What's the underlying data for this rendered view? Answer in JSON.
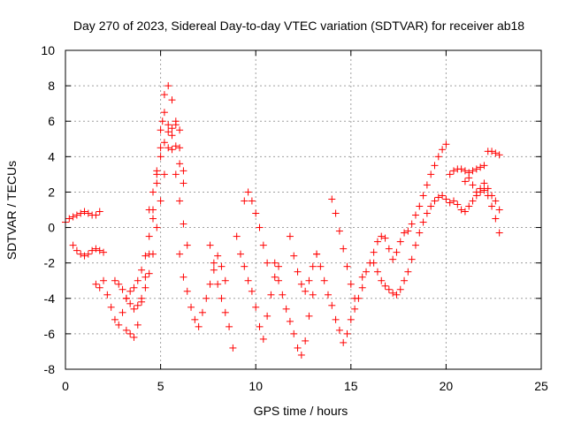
{
  "chart_data": {
    "type": "scatter",
    "title": "Day 270 of 2023, Sidereal Day-to-day VTEC variation (SDTVAR) for receiver ab18",
    "xlabel": "GPS time / hours",
    "ylabel": "SDTVAR / TECUs",
    "xlim": [
      0,
      25
    ],
    "ylim": [
      -8,
      10
    ],
    "x_ticks": [
      "0",
      "5",
      "10",
      "15",
      "20",
      "25"
    ],
    "y_ticks": [
      "-8",
      "-6",
      "-4",
      "-2",
      "0",
      "2",
      "4",
      "6",
      "8",
      "10"
    ],
    "grid": true,
    "marker": "plus",
    "color": "#ff0000",
    "series": [
      {
        "name": "SDTVAR",
        "x": [
          0.0,
          0.2,
          0.4,
          0.6,
          0.8,
          1.0,
          1.2,
          1.4,
          1.6,
          1.8,
          0.4,
          0.6,
          0.8,
          1.0,
          1.2,
          1.4,
          1.6,
          1.8,
          2.0,
          1.6,
          1.8,
          2.0,
          2.2,
          2.4,
          2.6,
          2.8,
          3.0,
          3.2,
          3.4,
          3.6,
          3.8,
          4.0,
          4.2,
          4.4,
          4.6,
          4.8,
          5.0,
          5.2,
          5.4,
          5.6,
          5.8,
          6.0,
          6.2,
          2.6,
          2.8,
          3.0,
          3.2,
          3.4,
          3.6,
          3.8,
          4.0,
          4.2,
          4.4,
          4.6,
          4.8,
          5.0,
          5.2,
          5.4,
          5.6,
          5.8,
          6.0,
          3.2,
          3.4,
          3.6,
          3.8,
          4.0,
          4.2,
          4.4,
          4.6,
          4.8,
          5.0,
          5.1,
          5.2,
          5.4,
          5.6,
          5.8,
          6.0,
          6.2,
          6.4,
          4.4,
          4.6,
          4.8,
          5.0,
          5.2,
          5.4,
          5.6,
          5.8,
          6.0,
          6.2,
          6.0,
          6.2,
          6.4,
          6.6,
          6.8,
          7.0,
          7.2,
          7.4,
          7.6,
          7.8,
          8.0,
          8.2,
          8.4,
          7.6,
          7.8,
          8.0,
          8.2,
          8.4,
          8.6,
          8.8,
          9.0,
          9.2,
          9.4,
          9.6,
          9.8,
          10.0,
          10.2,
          10.4,
          10.6,
          10.8,
          11.0,
          11.2,
          9.4,
          9.6,
          9.8,
          10.0,
          10.2,
          10.4,
          10.6,
          11.0,
          11.2,
          11.4,
          11.6,
          11.8,
          12.0,
          12.2,
          12.4,
          12.6,
          12.8,
          13.0,
          11.8,
          12.0,
          12.2,
          12.4,
          12.6,
          12.8,
          13.0,
          13.2,
          13.2,
          13.4,
          13.6,
          13.8,
          14.0,
          14.2,
          14.4,
          14.6,
          14.8,
          15.0,
          15.2,
          15.4,
          15.6,
          14.0,
          14.2,
          14.4,
          14.6,
          14.8,
          15.0,
          15.2,
          15.6,
          15.8,
          16.0,
          16.2,
          16.4,
          16.6,
          16.8,
          17.0,
          17.2,
          17.4,
          17.6,
          17.8,
          18.0,
          18.2,
          18.4,
          18.6,
          18.8,
          19.0,
          19.2,
          19.4,
          19.6,
          19.8,
          20.0,
          16.2,
          16.4,
          16.6,
          16.8,
          17.0,
          17.2,
          17.4,
          17.6,
          17.8,
          18.0,
          18.2,
          18.4,
          18.6,
          18.8,
          19.0,
          19.2,
          19.4,
          19.6,
          19.8,
          20.0,
          20.2,
          20.2,
          20.4,
          20.6,
          20.8,
          21.0,
          21.2,
          21.4,
          21.6,
          21.8,
          22.0,
          22.2,
          22.4,
          22.6,
          22.8,
          20.4,
          20.6,
          20.8,
          21.0,
          21.2,
          21.4,
          21.6,
          21.8,
          22.0,
          22.2,
          22.4,
          22.6,
          22.8,
          21.0,
          21.2,
          21.4,
          21.6,
          21.8,
          22.0,
          22.2,
          22.4,
          22.6,
          22.8
        ],
        "y": [
          0.3,
          0.5,
          0.6,
          0.7,
          0.8,
          0.9,
          0.8,
          0.7,
          0.7,
          0.9,
          -1.0,
          -1.3,
          -1.5,
          -1.6,
          -1.5,
          -1.3,
          -1.2,
          -1.3,
          -1.4,
          -3.2,
          -3.4,
          -3.0,
          -3.8,
          -4.5,
          -5.2,
          -5.5,
          -4.8,
          -4.0,
          -3.6,
          -3.4,
          -3.0,
          -2.4,
          -1.6,
          -0.5,
          1.0,
          3.0,
          5.5,
          7.5,
          8.0,
          7.2,
          6.0,
          4.5,
          3.2,
          -3.0,
          -3.2,
          -3.5,
          -4.0,
          -4.3,
          -4.6,
          -4.4,
          -4.0,
          -3.4,
          -2.6,
          -1.5,
          0.0,
          1.5,
          3.0,
          4.5,
          5.6,
          5.8,
          5.5,
          -5.8,
          -6.0,
          -6.2,
          -5.5,
          -4.2,
          -2.8,
          -1.5,
          0.5,
          2.5,
          4.5,
          6.0,
          6.5,
          5.8,
          4.4,
          3.0,
          1.5,
          0.2,
          -1.0,
          1.0,
          2.0,
          3.2,
          4.0,
          4.8,
          5.4,
          5.2,
          4.6,
          3.6,
          2.5,
          -1.5,
          -2.8,
          -3.6,
          -4.5,
          -5.2,
          -5.6,
          -4.8,
          -4.0,
          -3.2,
          -2.4,
          -1.6,
          -2.2,
          -3.0,
          -1.0,
          -2.0,
          -3.2,
          -4.0,
          -4.8,
          -5.6,
          -6.8,
          -0.5,
          -1.5,
          -2.2,
          -3.0,
          -3.6,
          -4.5,
          -5.6,
          -6.3,
          -5.0,
          -3.8,
          -2.8,
          -2.2,
          1.5,
          2.0,
          1.5,
          0.8,
          0.0,
          -1.0,
          -2.0,
          -2.0,
          -3.0,
          -3.8,
          -4.6,
          -5.3,
          -6.0,
          -6.8,
          -7.2,
          -6.4,
          -5.0,
          -3.8,
          -0.5,
          -1.6,
          -2.5,
          -3.2,
          -3.6,
          -3.0,
          -2.2,
          -1.5,
          -1.5,
          -2.2,
          -3.0,
          -3.8,
          -4.4,
          -5.2,
          -5.8,
          -6.5,
          -6.0,
          -5.2,
          -4.6,
          -4.0,
          -3.4,
          1.6,
          0.8,
          -0.2,
          -1.2,
          -2.2,
          -3.2,
          -4.0,
          -2.8,
          -2.5,
          -2.0,
          -1.4,
          -0.8,
          -0.5,
          -0.6,
          -1.2,
          -1.8,
          -1.4,
          -0.8,
          -0.3,
          -0.2,
          0.2,
          0.7,
          1.2,
          1.8,
          2.4,
          3.0,
          3.5,
          4.0,
          4.4,
          4.7,
          -2.0,
          -2.5,
          -3.0,
          -3.3,
          -3.5,
          -3.7,
          -3.8,
          -3.5,
          -3.0,
          -2.5,
          -1.8,
          -1.0,
          -0.3,
          0.3,
          0.8,
          1.2,
          1.5,
          1.7,
          1.8,
          1.6,
          1.4,
          3.0,
          3.2,
          3.3,
          3.3,
          3.2,
          3.1,
          3.2,
          3.3,
          3.4,
          3.5,
          4.3,
          4.3,
          4.2,
          4.1,
          1.5,
          1.3,
          1.0,
          0.9,
          1.2,
          1.5,
          1.8,
          2.0,
          2.1,
          1.8,
          1.2,
          0.5,
          -0.3,
          2.6,
          2.8,
          2.4,
          2.0,
          2.2,
          2.5,
          2.2,
          1.8,
          1.5,
          1.0
        ]
      }
    ]
  }
}
